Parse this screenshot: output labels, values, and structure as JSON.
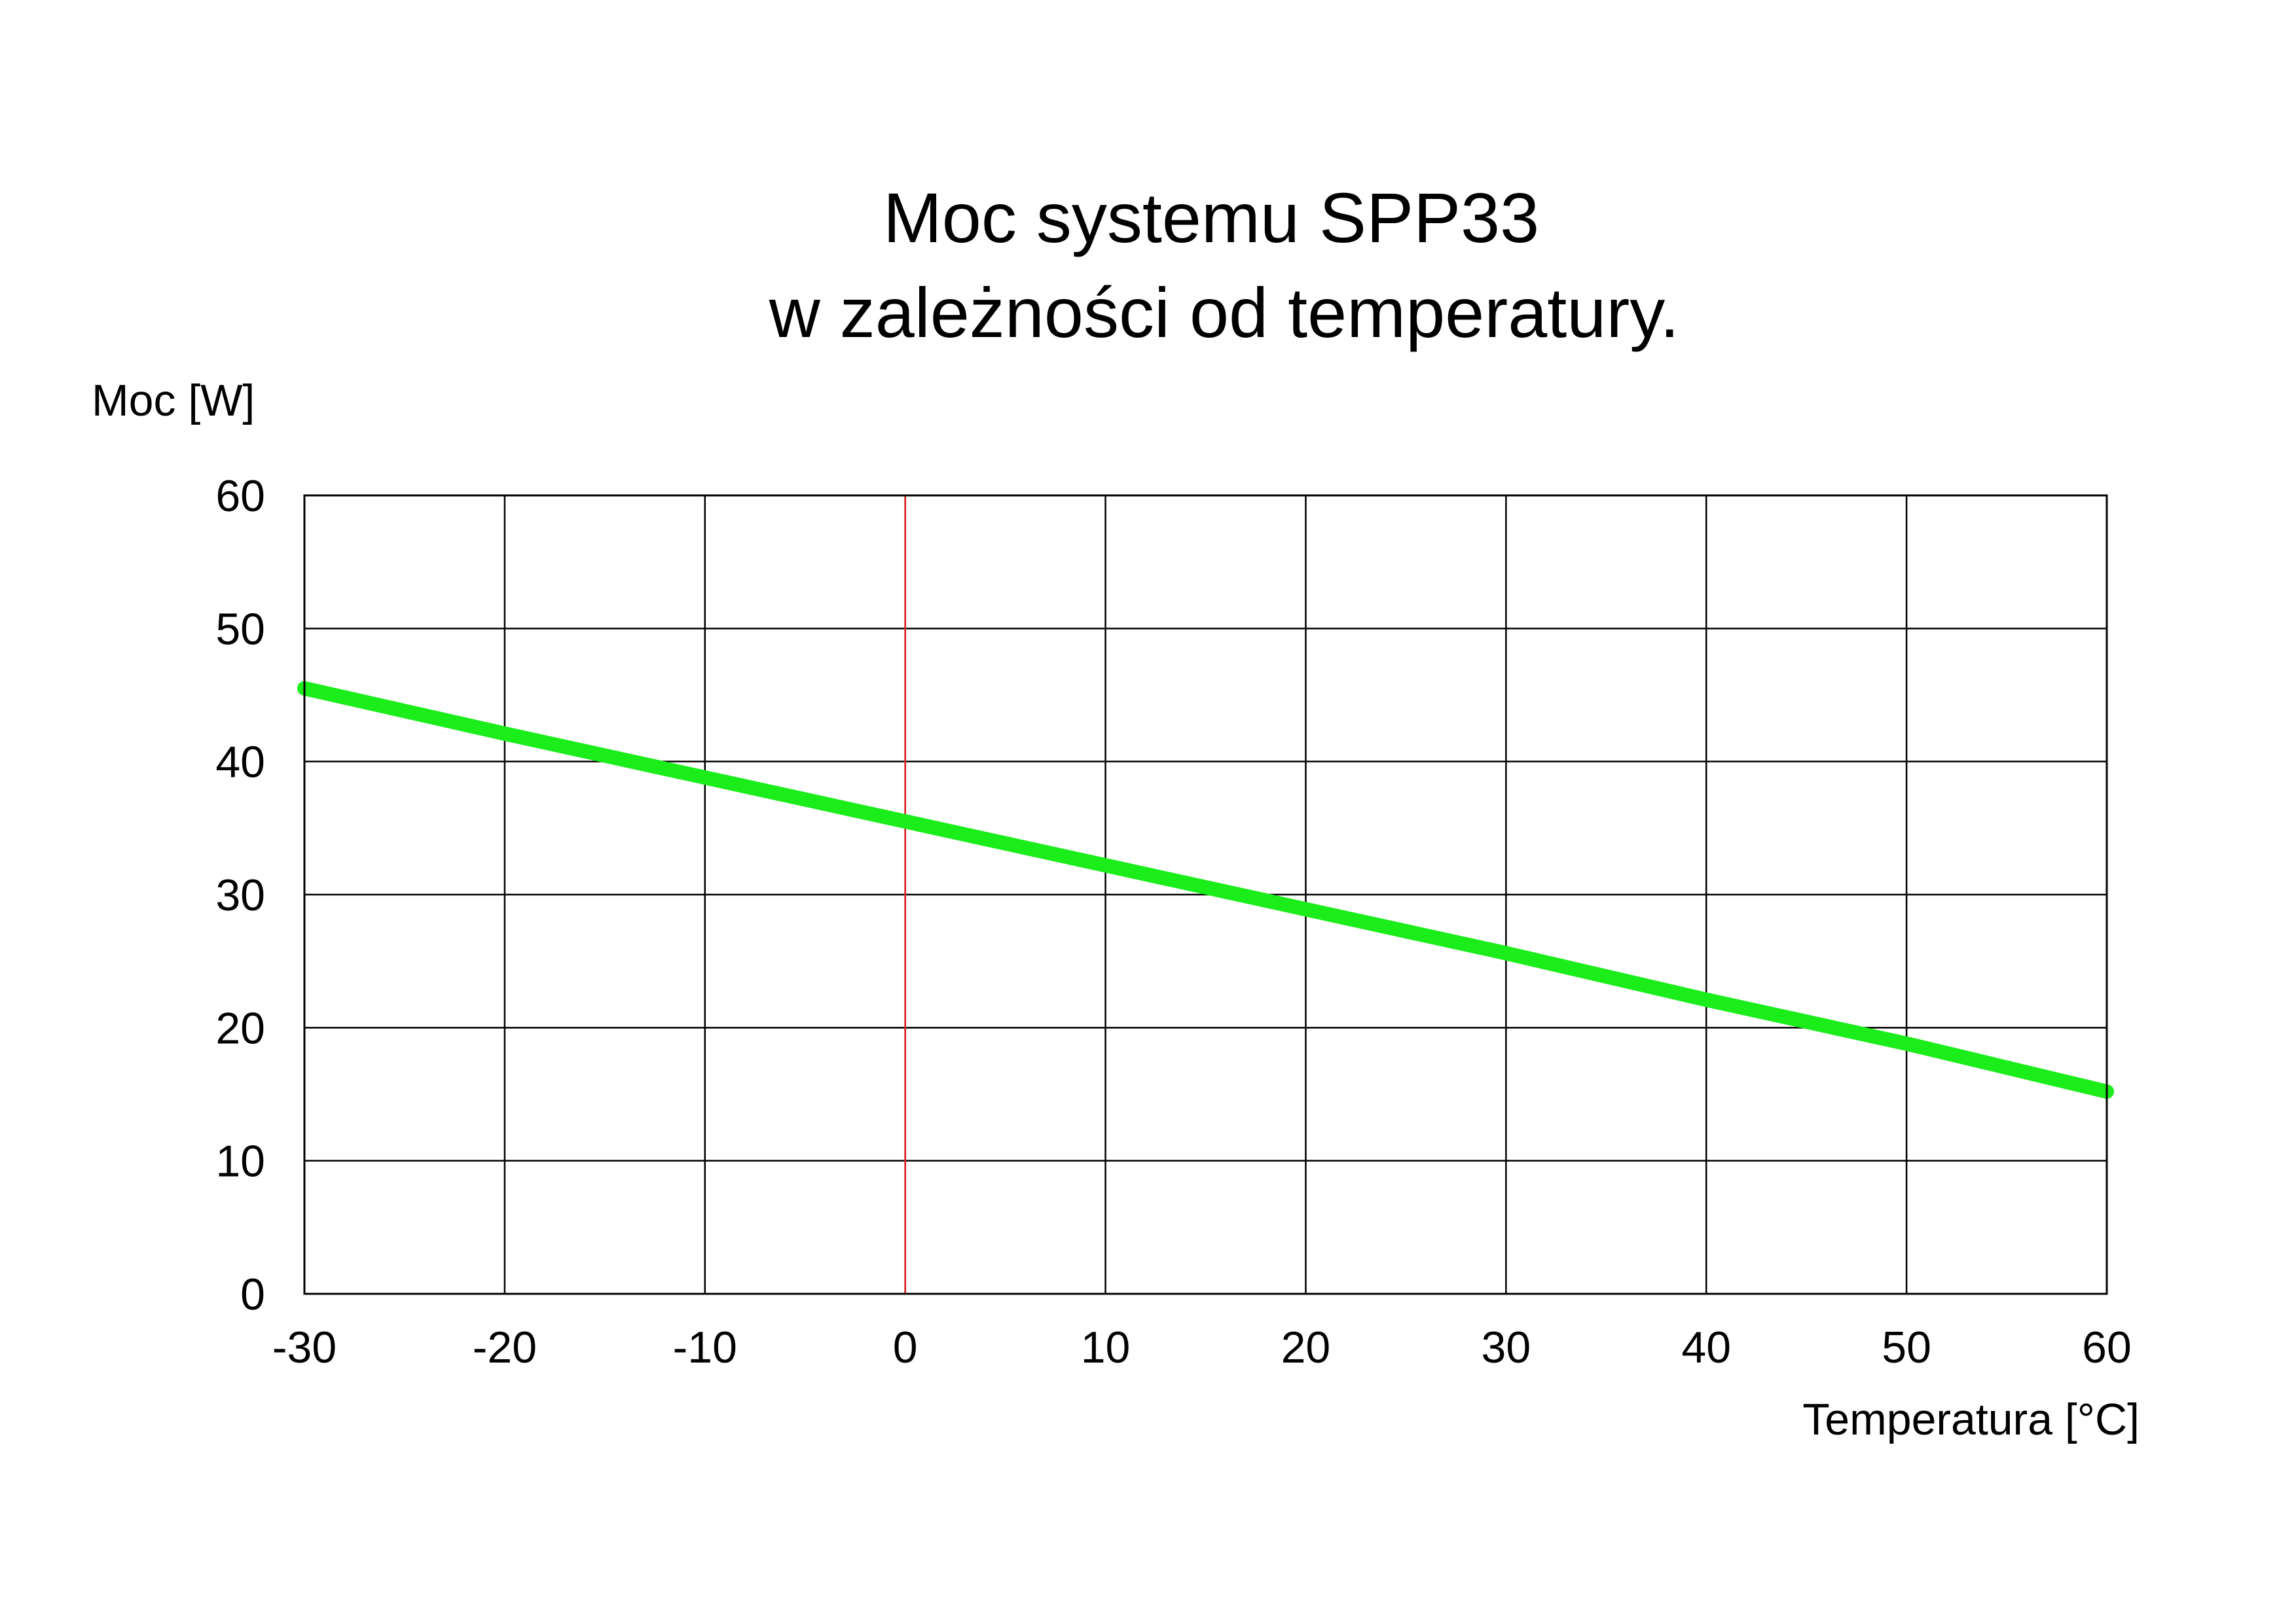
{
  "chart_data": {
    "type": "line",
    "title": [
      "Moc systemu SPP33",
      "w zależności od temperatury."
    ],
    "xlabel": "Temperatura [°C]",
    "ylabel": "Moc [W]",
    "xlim": [
      -30,
      60
    ],
    "ylim": [
      0,
      60
    ],
    "x_ticks": [
      "-30",
      "-20",
      "-10",
      "0",
      "10",
      "20",
      "30",
      "40",
      "50",
      "60"
    ],
    "y_ticks": [
      "0",
      "10",
      "20",
      "30",
      "40",
      "50",
      "60"
    ],
    "grid": true,
    "reference_line": {
      "x": 0,
      "color": "#e02020"
    },
    "series": [
      {
        "color": "#1aed1a",
        "x": [
          -30,
          -20,
          -10,
          0,
          10,
          20,
          30,
          40,
          50,
          60
        ],
        "y": [
          45.5,
          42.1,
          38.8,
          35.5,
          32.2,
          28.9,
          25.6,
          22.1,
          18.8,
          15.2
        ]
      }
    ]
  }
}
